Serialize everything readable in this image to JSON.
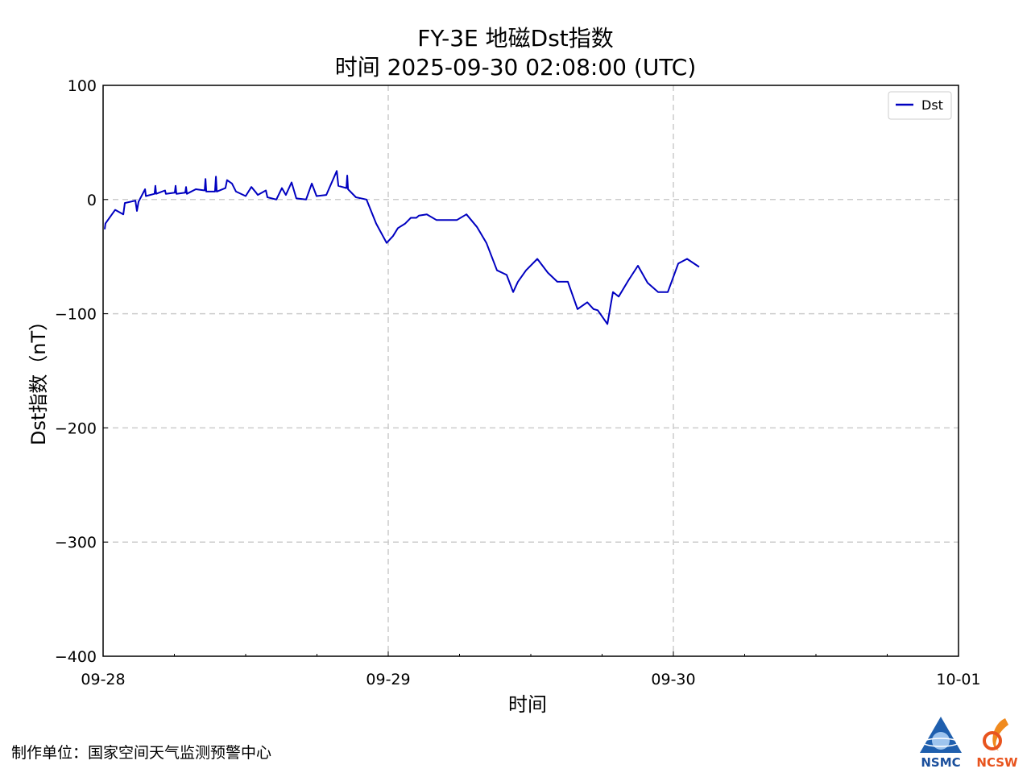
{
  "chart_data": {
    "type": "line",
    "title": "FY-3E 地磁Dst指数",
    "subtitle": "时间 2025-09-30 02:08:00 (UTC)",
    "xlabel": "时间",
    "ylabel": "Dst指数（nT）",
    "xlim": [
      "2025-09-28T00:00",
      "2025-10-01T00:00"
    ],
    "ylim": [
      -400,
      100
    ],
    "xticks": [
      "09-28",
      "09-29",
      "09-30",
      "10-01"
    ],
    "yticks": [
      100,
      0,
      -100,
      -200,
      -300,
      -400
    ],
    "ytick_labels": [
      "100",
      "0",
      "−100",
      "−200",
      "−300",
      "−400"
    ],
    "grid": true,
    "legend_position": "top-right",
    "series": [
      {
        "name": "Dst",
        "color": "#0000c0",
        "points": [
          [
            "2025-09-28T00:08",
            -26
          ],
          [
            "2025-09-28T00:12",
            -21
          ],
          [
            "2025-09-28T01:01",
            -9
          ],
          [
            "2025-09-28T01:42",
            -13
          ],
          [
            "2025-09-28T01:50",
            -3
          ],
          [
            "2025-09-28T02:43",
            -1
          ],
          [
            "2025-09-28T02:51",
            -10
          ],
          [
            "2025-09-28T02:59",
            -2
          ],
          [
            "2025-09-28T03:32",
            9
          ],
          [
            "2025-09-28T03:36",
            3
          ],
          [
            "2025-09-28T04:20",
            5
          ],
          [
            "2025-09-28T04:24",
            12
          ],
          [
            "2025-09-28T04:28",
            5
          ],
          [
            "2025-09-28T05:13",
            8
          ],
          [
            "2025-09-28T05:17",
            5
          ],
          [
            "2025-09-28T06:02",
            6
          ],
          [
            "2025-09-28T06:06",
            12
          ],
          [
            "2025-09-28T06:10",
            5
          ],
          [
            "2025-09-28T06:55",
            6
          ],
          [
            "2025-09-28T06:59",
            11
          ],
          [
            "2025-09-28T07:03",
            5
          ],
          [
            "2025-09-28T07:48",
            9
          ],
          [
            "2025-09-28T08:33",
            8
          ],
          [
            "2025-09-28T08:37",
            18
          ],
          [
            "2025-09-28T08:41",
            7
          ],
          [
            "2025-09-28T09:25",
            7
          ],
          [
            "2025-09-28T09:30",
            20
          ],
          [
            "2025-09-28T09:34",
            7
          ],
          [
            "2025-09-28T10:18",
            10
          ],
          [
            "2025-09-28T10:26",
            17
          ],
          [
            "2025-09-28T10:51",
            14
          ],
          [
            "2025-09-28T11:11",
            7
          ],
          [
            "2025-09-28T12:00",
            3
          ],
          [
            "2025-09-28T12:29",
            11
          ],
          [
            "2025-09-28T12:53",
            6
          ],
          [
            "2025-09-28T13:01",
            4
          ],
          [
            "2025-09-28T13:42",
            8
          ],
          [
            "2025-09-28T13:50",
            2
          ],
          [
            "2025-09-28T14:35",
            0
          ],
          [
            "2025-09-28T15:03",
            10
          ],
          [
            "2025-09-28T15:23",
            4
          ],
          [
            "2025-09-28T15:52",
            15
          ],
          [
            "2025-09-28T16:16",
            1
          ],
          [
            "2025-09-28T17:05",
            0
          ],
          [
            "2025-09-28T17:34",
            14
          ],
          [
            "2025-09-28T17:58",
            3
          ],
          [
            "2025-09-28T18:47",
            4
          ],
          [
            "2025-09-28T19:40",
            25
          ],
          [
            "2025-09-28T19:48",
            12
          ],
          [
            "2025-09-28T20:29",
            10
          ],
          [
            "2025-09-28T20:33",
            21
          ],
          [
            "2025-09-28T20:37",
            9
          ],
          [
            "2025-09-28T21:17",
            2
          ],
          [
            "2025-09-28T22:10",
            0
          ],
          [
            "2025-09-28T22:59",
            -21
          ],
          [
            "2025-09-28T23:52",
            -38
          ],
          [
            "2025-09-29T00:24",
            -32
          ],
          [
            "2025-09-29T00:49",
            -25
          ],
          [
            "2025-09-29T01:26",
            -21
          ],
          [
            "2025-09-29T01:54",
            -16
          ],
          [
            "2025-09-29T02:22",
            -16
          ],
          [
            "2025-09-29T02:35",
            -14
          ],
          [
            "2025-09-29T03:15",
            -13
          ],
          [
            "2025-09-29T04:04",
            -18
          ],
          [
            "2025-09-29T05:05",
            -18
          ],
          [
            "2025-09-29T05:46",
            -18
          ],
          [
            "2025-09-29T06:35",
            -13
          ],
          [
            "2025-09-29T07:28",
            -24
          ],
          [
            "2025-09-29T08:16",
            -38
          ],
          [
            "2025-09-29T09:09",
            -62
          ],
          [
            "2025-09-29T09:58",
            -66
          ],
          [
            "2025-09-29T10:31",
            -81
          ],
          [
            "2025-09-29T10:55",
            -72
          ],
          [
            "2025-09-29T11:36",
            -62
          ],
          [
            "2025-09-29T12:33",
            -52
          ],
          [
            "2025-09-29T13:26",
            -64
          ],
          [
            "2025-09-29T14:14",
            -72
          ],
          [
            "2025-09-29T15:07",
            -72
          ],
          [
            "2025-09-29T15:56",
            -96
          ],
          [
            "2025-09-29T16:45",
            -90
          ],
          [
            "2025-09-29T17:17",
            -96
          ],
          [
            "2025-09-29T17:38",
            -97
          ],
          [
            "2025-09-29T18:27",
            -109
          ],
          [
            "2025-09-29T18:55",
            -81
          ],
          [
            "2025-09-29T19:24",
            -85
          ],
          [
            "2025-09-29T20:12",
            -71
          ],
          [
            "2025-09-29T21:01",
            -58
          ],
          [
            "2025-09-29T21:50",
            -73
          ],
          [
            "2025-09-29T22:43",
            -81
          ],
          [
            "2025-09-29T23:32",
            -81
          ],
          [
            "2025-09-30T00:25",
            -56
          ],
          [
            "2025-09-30T01:09",
            -52
          ],
          [
            "2025-09-30T02:10",
            -59
          ]
        ]
      }
    ]
  },
  "footer": "制作单位：国家空间天气监测预警中心",
  "logos": [
    {
      "text": "NSMC",
      "color": "#1a4f9c"
    },
    {
      "text": "NCSW",
      "color": "#e8541e"
    }
  ]
}
